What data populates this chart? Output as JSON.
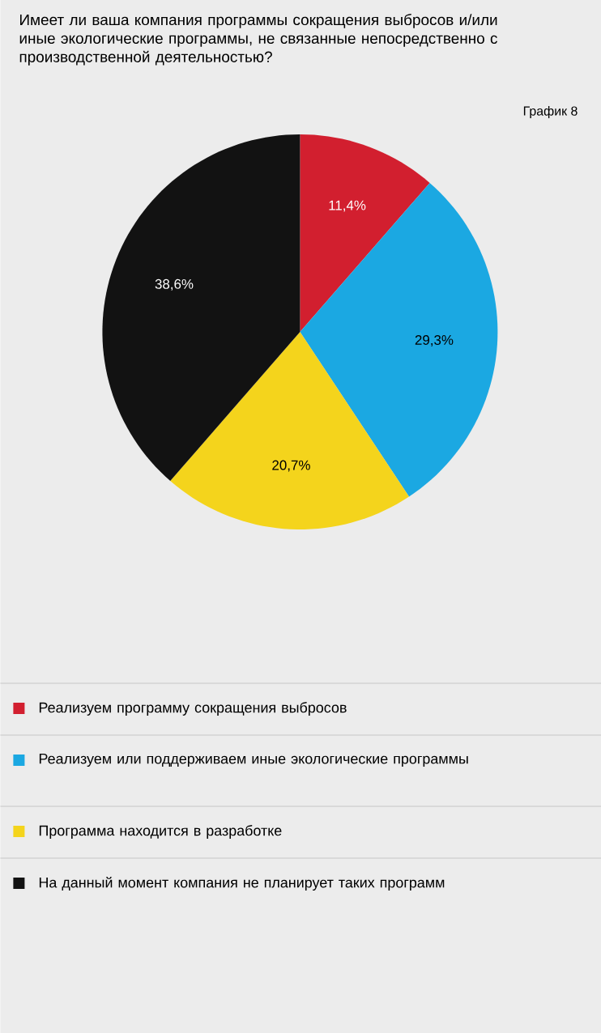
{
  "chart_data": {
    "type": "pie",
    "title": "Имеет ли ваша компания программы сокращения выбросов и/или иные экологические программы, не связанные непосредственно с производственной деятельностью?",
    "subtitle": "График 8",
    "categories": [
      "Реализуем программу сокращения выбросов",
      "Реализуем или поддерживаем иные экологические программы",
      "Программа находится в разработке",
      "На данный момент компания не планирует таких программ"
    ],
    "values": [
      11.4,
      29.3,
      20.7,
      38.6
    ],
    "value_labels": [
      "11,4%",
      "29,3%",
      "20,7%",
      "38,6%"
    ],
    "colors": [
      "#d21f2f",
      "#1ba8e2",
      "#f4d41c",
      "#121212"
    ],
    "legend": "bottom"
  }
}
